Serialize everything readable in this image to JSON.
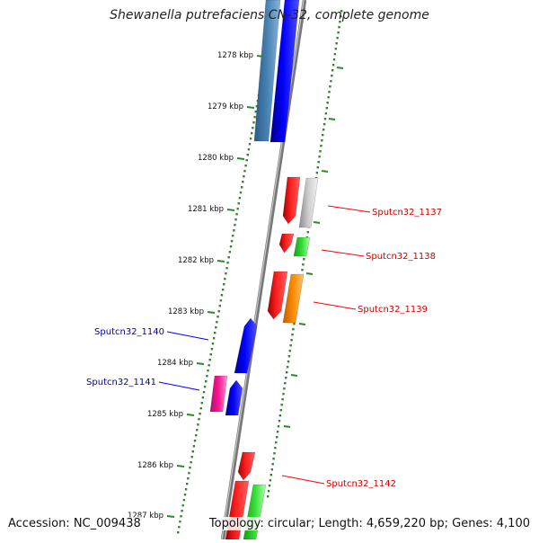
{
  "title": "Shewanella putrefaciens CN-32, complete genome",
  "footer": {
    "accession": "Accession: NC_009438",
    "summary": "Topology: circular; Length: 4,659,220 bp; Genes: 4,100"
  },
  "ticks": [
    "1278 kbp",
    "1279 kbp",
    "1280 kbp",
    "1281 kbp",
    "1282 kbp",
    "1283 kbp",
    "1284 kbp",
    "1285 kbp",
    "1286 kbp",
    "1287 kbp"
  ],
  "genes": [
    {
      "label": "Sputcn32_1137",
      "color": "#ff0000",
      "strand": "plus"
    },
    {
      "label": "Sputcn32_1138",
      "color": "#ff0000",
      "strand": "plus"
    },
    {
      "label": "Sputcn32_1139",
      "color": "#ff0000",
      "strand": "plus"
    },
    {
      "label": "Sputcn32_1140",
      "color": "#0000ff",
      "strand": "minus"
    },
    {
      "label": "Sputcn32_1141",
      "color": "#0000ff",
      "strand": "minus"
    },
    {
      "label": "Sputcn32_1142",
      "color": "#ff0000",
      "strand": "plus"
    }
  ],
  "colors": {
    "backbone": "#888888",
    "tick": "#2a8a2a",
    "cds_plus": "#ff0000",
    "cds_minus": "#0000ff",
    "cog_gray": "#c0c0c0",
    "cog_green": "#33cc33",
    "cog_orange": "#ff8c00",
    "cog_magenta": "#ff1493",
    "cog_steelblue": "#4682b4"
  }
}
